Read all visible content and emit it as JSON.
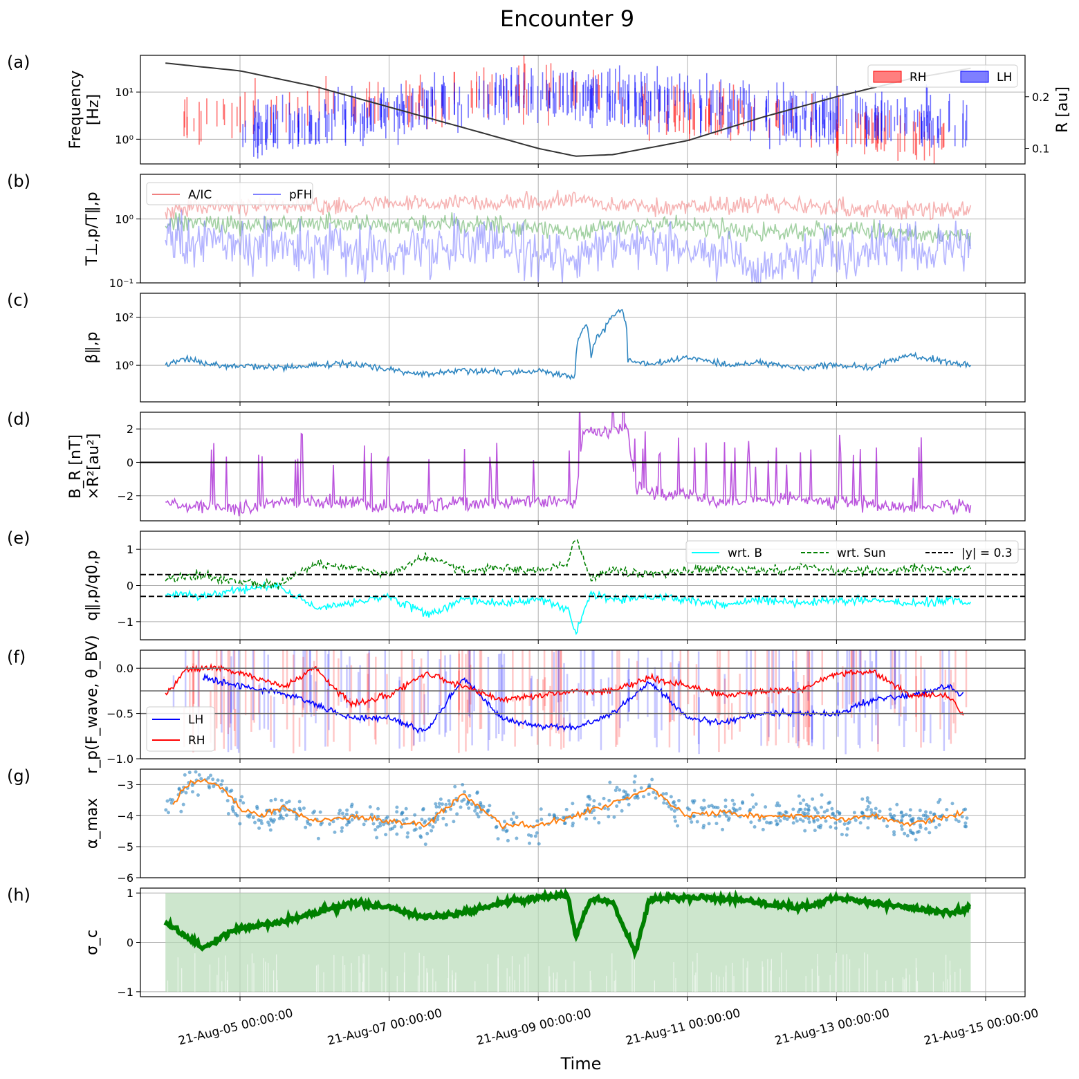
{
  "title": "Encounter 9",
  "xlabel": "Time",
  "x_tick_labels": [
    "21-Aug-05 00:00:00",
    "21-Aug-07 00:00:00",
    "21-Aug-09 00:00:00",
    "21-Aug-11 00:00:00",
    "21-Aug-13 00:00:00",
    "21-Aug-15 00:00:00"
  ],
  "colors": {
    "rh": "#ff0000",
    "lh": "#0000ff",
    "radius": "#333333",
    "aic": "#f08080",
    "pfh": "#8080ff",
    "ratio": "#66b266",
    "beta": "#2e86c1",
    "br": "#bb55dd",
    "q_b": "#00ffff",
    "q_sun": "#008000",
    "alpha_pts": "#2e86c1",
    "alpha_line": "#ff7f0e",
    "sigma": "#008000",
    "sigma_band": "#b8dcb8"
  },
  "chart_data": [
    {
      "panel": "(a)",
      "type": "area",
      "ylabel": [
        "Frequency",
        "[Hz]"
      ],
      "ylabel_right": "R [au]",
      "yscale": "log",
      "ylim": [
        0.3,
        60
      ],
      "yticks": [
        "10⁰",
        "10¹"
      ],
      "right_yticks": [
        "0.1",
        "0.2"
      ],
      "right_ylim": [
        0.07,
        0.28
      ],
      "legend": [
        "RH",
        "LH"
      ],
      "legend_position": "upper right",
      "series": [
        {
          "name": "RH",
          "x_days": [
            4.2,
            4.5,
            4.8,
            6.6,
            7.5,
            8.4,
            8.8,
            9.7,
            9.9,
            10.1,
            10.4,
            10.7,
            14.5
          ],
          "freq_hz": [
            2.5,
            3.0,
            4.0,
            5.0,
            6.0,
            10.0,
            12.0,
            9.0,
            10.0,
            8.0,
            5.0,
            4.0,
            0.8
          ]
        },
        {
          "name": "LH",
          "x_days": [
            5.0,
            6.0,
            7.0,
            8.0,
            9.0,
            10.0,
            11.0,
            12.0,
            13.0,
            14.0,
            14.8
          ],
          "freq_hz": [
            1.5,
            2.5,
            4.0,
            7.0,
            10.0,
            8.0,
            6.0,
            4.0,
            3.0,
            2.5,
            2.0
          ]
        }
      ],
      "radius_au": {
        "x_days": [
          4.0,
          5.0,
          6.0,
          7.0,
          8.0,
          9.0,
          9.5,
          10.0,
          11.0,
          12.0,
          13.0,
          14.0,
          14.8
        ],
        "r_au": [
          0.265,
          0.25,
          0.22,
          0.18,
          0.14,
          0.1,
          0.085,
          0.088,
          0.115,
          0.16,
          0.2,
          0.235,
          0.255
        ]
      }
    },
    {
      "panel": "(b)",
      "type": "line",
      "ylabel": "T⊥,p/T∥,p",
      "yscale": "log",
      "ylim": [
        0.1,
        5
      ],
      "yticks": [
        "10⁻¹",
        "10⁰"
      ],
      "legend": [
        "A/IC",
        "pFH"
      ],
      "legend_position": "upper left",
      "series": [
        {
          "name": "A/IC",
          "x_days": [
            4.0,
            5.0,
            6.0,
            7.0,
            8.0,
            9.0,
            9.5,
            10.0,
            11.0,
            12.0,
            13.0,
            14.0,
            14.8
          ],
          "values": [
            1.4,
            1.6,
            1.6,
            1.7,
            1.8,
            1.8,
            2.0,
            1.6,
            1.5,
            1.7,
            1.5,
            1.4,
            1.4
          ]
        },
        {
          "name": "",
          "x_days": [
            4.0,
            5.0,
            6.0,
            7.0,
            8.0,
            9.0,
            9.5,
            10.0,
            11.0,
            12.0,
            13.0,
            14.0,
            14.8
          ],
          "values": [
            0.9,
            0.8,
            0.9,
            0.8,
            0.9,
            0.7,
            0.6,
            0.8,
            0.8,
            0.6,
            0.7,
            0.6,
            0.5
          ]
        },
        {
          "name": "pFH",
          "x_days": [
            4.0,
            5.0,
            6.0,
            7.0,
            8.0,
            9.0,
            9.5,
            10.0,
            11.0,
            12.0,
            13.0,
            14.0,
            14.8
          ],
          "values": [
            0.5,
            0.4,
            0.3,
            0.35,
            0.4,
            0.3,
            0.25,
            0.4,
            0.3,
            0.2,
            0.3,
            0.4,
            0.3
          ]
        }
      ]
    },
    {
      "panel": "(c)",
      "type": "line",
      "ylabel": "β∥,p",
      "yscale": "log",
      "ylim": [
        0.03,
        1000
      ],
      "yticks": [
        "10⁰",
        "10²"
      ],
      "series": [
        {
          "name": "",
          "x_days": [
            4.0,
            4.3,
            4.6,
            5.0,
            5.5,
            6.0,
            6.5,
            7.0,
            7.5,
            8.0,
            8.5,
            9.0,
            9.3,
            9.5,
            9.65,
            9.7,
            9.9,
            10.1,
            10.2,
            10.5,
            11.0,
            11.5,
            12.0,
            12.5,
            13.0,
            13.5,
            14.0,
            14.4,
            14.8
          ],
          "values": [
            1.0,
            2.0,
            1.0,
            0.9,
            0.8,
            1.0,
            1.2,
            0.6,
            0.4,
            0.6,
            0.5,
            0.6,
            0.4,
            0.3,
            50.0,
            1.0,
            30.0,
            200.0,
            1.5,
            1.0,
            2.0,
            1.0,
            1.3,
            0.8,
            1.0,
            0.8,
            2.5,
            1.5,
            1.0
          ]
        }
      ]
    },
    {
      "panel": "(d)",
      "type": "line",
      "ylabel": [
        "B_R [nT]",
        "×R²[au²]"
      ],
      "ylim": [
        -3.5,
        3
      ],
      "yticks": [
        "2",
        "0",
        "−2"
      ],
      "zero_line": true,
      "series": [
        {
          "name": "",
          "x_days": [
            4.0,
            4.5,
            5.0,
            5.5,
            6.0,
            6.5,
            7.0,
            7.5,
            8.0,
            8.5,
            9.0,
            9.5,
            9.6,
            10.0,
            10.2,
            10.3,
            10.5,
            11.0,
            11.5,
            12.0,
            12.5,
            13.0,
            13.5,
            14.0,
            14.5,
            14.8
          ],
          "values": [
            -2.5,
            -2.6,
            -2.8,
            -2.4,
            -2.3,
            -2.5,
            -2.7,
            -2.6,
            -2.5,
            -2.4,
            -2.3,
            -2.4,
            2.0,
            1.8,
            2.0,
            -1.5,
            -1.8,
            -2.0,
            -2.4,
            -2.3,
            -2.2,
            -2.4,
            -2.5,
            -2.8,
            -2.6,
            -2.7
          ]
        }
      ]
    },
    {
      "panel": "(e)",
      "type": "line",
      "ylabel": "q∥,p/q0,p",
      "ylim": [
        -1.5,
        1.5
      ],
      "yticks": [
        "1",
        "0",
        "−1"
      ],
      "legend": [
        "wrt. B",
        "wrt. Sun",
        "|y| = 0.3"
      ],
      "legend_position": "upper right",
      "series": [
        {
          "name": "wrt. B",
          "x_days": [
            4.0,
            4.5,
            5.0,
            5.5,
            6.0,
            6.5,
            7.0,
            7.5,
            8.0,
            8.5,
            9.0,
            9.4,
            9.5,
            9.7,
            10.0,
            10.5,
            11.0,
            11.5,
            12.0,
            12.5,
            13.0,
            13.5,
            14.0,
            14.5,
            14.8
          ],
          "values": [
            -0.2,
            -0.3,
            -0.1,
            0.0,
            -0.6,
            -0.5,
            -0.3,
            -0.8,
            -0.4,
            -0.5,
            -0.4,
            -0.6,
            -1.4,
            -0.2,
            -0.4,
            -0.3,
            -0.4,
            -0.5,
            -0.4,
            -0.5,
            -0.4,
            -0.4,
            -0.5,
            -0.4,
            -0.5
          ]
        },
        {
          "name": "wrt. Sun",
          "x_days": [
            4.0,
            4.5,
            5.0,
            5.5,
            6.0,
            6.5,
            7.0,
            7.5,
            8.0,
            8.5,
            9.0,
            9.4,
            9.5,
            9.7,
            10.0,
            10.5,
            11.0,
            11.5,
            12.0,
            12.5,
            13.0,
            13.5,
            14.0,
            14.5,
            14.8
          ],
          "values": [
            0.2,
            0.3,
            0.1,
            0.0,
            0.6,
            0.5,
            0.3,
            0.8,
            0.4,
            0.5,
            0.4,
            0.6,
            1.4,
            0.2,
            0.4,
            0.3,
            0.4,
            0.5,
            0.4,
            0.5,
            0.4,
            0.4,
            0.5,
            0.4,
            0.5
          ]
        }
      ],
      "hlines": [
        0.3,
        -0.3
      ]
    },
    {
      "panel": "(f)",
      "type": "line",
      "ylabel": "r_p(F_wave, θ_BV)",
      "ylim": [
        -1.0,
        0.2
      ],
      "yticks": [
        "0.0",
        "−0.5",
        "−1.0"
      ],
      "hlines": [
        0.0,
        -0.25,
        -0.5
      ],
      "legend": [
        "LH",
        "RH"
      ],
      "legend_position": "lower left",
      "series": [
        {
          "name": "LH",
          "x_days": [
            4.5,
            5.0,
            5.5,
            6.0,
            6.5,
            7.0,
            7.5,
            8.0,
            8.5,
            9.0,
            9.5,
            10.0,
            10.5,
            11.0,
            11.5,
            12.0,
            12.5,
            13.0,
            13.5,
            14.0,
            14.5,
            14.7
          ],
          "values": [
            -0.1,
            -0.2,
            -0.25,
            -0.4,
            -0.55,
            -0.55,
            -0.7,
            -0.1,
            -0.55,
            -0.65,
            -0.65,
            -0.5,
            -0.15,
            -0.55,
            -0.6,
            -0.5,
            -0.5,
            -0.5,
            -0.35,
            -0.3,
            -0.2,
            -0.3
          ]
        },
        {
          "name": "RH",
          "x_days": [
            4.0,
            4.3,
            4.8,
            5.2,
            5.6,
            6.0,
            6.5,
            7.0,
            7.5,
            8.0,
            8.5,
            9.0,
            9.5,
            10.0,
            10.5,
            11.0,
            11.5,
            12.0,
            12.5,
            13.0,
            13.5,
            14.0,
            14.5,
            14.7
          ],
          "values": [
            -0.3,
            0.0,
            0.0,
            -0.1,
            -0.2,
            0.0,
            -0.4,
            -0.3,
            -0.05,
            -0.2,
            -0.35,
            -0.3,
            -0.25,
            -0.25,
            -0.1,
            -0.2,
            -0.3,
            -0.25,
            -0.25,
            -0.05,
            -0.05,
            -0.3,
            -0.3,
            -0.5
          ]
        }
      ]
    },
    {
      "panel": "(g)",
      "type": "scatter",
      "ylabel": "α_max",
      "ylim": [
        -6,
        -2.5
      ],
      "yticks": [
        "−3",
        "−4",
        "−5",
        "−6"
      ],
      "series": [
        {
          "name": "",
          "x_days": [
            4.0,
            4.3,
            4.5,
            4.8,
            5.0,
            5.3,
            5.6,
            6.0,
            6.5,
            7.0,
            7.5,
            8.0,
            8.5,
            9.0,
            9.5,
            10.0,
            10.5,
            11.0,
            11.5,
            12.0,
            12.5,
            13.0,
            13.5,
            14.0,
            14.5,
            14.8
          ],
          "values": [
            -3.9,
            -3.0,
            -2.8,
            -3.2,
            -3.8,
            -4.0,
            -3.7,
            -4.2,
            -4.0,
            -4.2,
            -4.3,
            -3.3,
            -4.3,
            -4.3,
            -4.0,
            -3.6,
            -3.1,
            -4.0,
            -3.9,
            -4.0,
            -4.0,
            -4.1,
            -4.0,
            -4.3,
            -4.0,
            -3.9
          ]
        },
        {
          "name": "",
          "x_days": [
            4.0,
            4.3,
            4.5,
            4.8,
            5.0,
            5.3,
            5.6,
            6.0,
            6.5,
            7.0,
            7.5,
            8.0,
            8.5,
            9.0,
            9.5,
            10.0,
            10.5,
            11.0,
            11.5,
            12.0,
            12.5,
            13.0,
            13.5,
            14.0,
            14.5,
            14.8
          ],
          "values": [
            -3.9,
            -3.0,
            -2.8,
            -3.2,
            -3.8,
            -4.0,
            -3.7,
            -4.2,
            -4.0,
            -4.2,
            -4.3,
            -3.3,
            -4.3,
            -4.3,
            -4.0,
            -3.6,
            -3.1,
            -4.0,
            -3.9,
            -4.0,
            -4.0,
            -4.1,
            -4.0,
            -4.3,
            -4.0,
            -3.9
          ]
        }
      ]
    },
    {
      "panel": "(h)",
      "type": "line",
      "ylabel": "σ_c",
      "ylim": [
        -1.1,
        1.1
      ],
      "yticks": [
        "1",
        "0",
        "−1"
      ],
      "series": [
        {
          "name": "",
          "x_days": [
            4.0,
            4.3,
            4.5,
            5.0,
            5.5,
            6.0,
            6.5,
            7.0,
            7.5,
            8.0,
            8.5,
            9.0,
            9.4,
            9.5,
            9.7,
            10.0,
            10.3,
            10.5,
            11.0,
            11.5,
            12.0,
            12.5,
            13.0,
            13.5,
            14.0,
            14.5,
            14.8
          ],
          "values": [
            0.4,
            0.1,
            -0.1,
            0.3,
            0.4,
            0.6,
            0.8,
            0.7,
            0.5,
            0.6,
            0.8,
            0.9,
            0.95,
            0.1,
            0.9,
            0.8,
            -0.2,
            0.9,
            0.9,
            0.9,
            0.8,
            0.7,
            0.9,
            0.8,
            0.7,
            0.6,
            0.7
          ]
        }
      ]
    }
  ],
  "panels": [
    {
      "label": "(a)",
      "legend": [
        "RH",
        "LH"
      ]
    },
    {
      "label": "(b)",
      "legend": [
        "A/IC",
        "pFH"
      ]
    },
    {
      "label": "(c)",
      "legend": []
    },
    {
      "label": "(d)",
      "legend": []
    },
    {
      "label": "(e)",
      "legend": [
        "wrt. B",
        "wrt. Sun",
        "|y| = 0.3"
      ]
    },
    {
      "label": "(f)",
      "legend": [
        "LH",
        "RH"
      ]
    },
    {
      "label": "(g)",
      "legend": []
    },
    {
      "label": "(h)",
      "legend": []
    }
  ]
}
